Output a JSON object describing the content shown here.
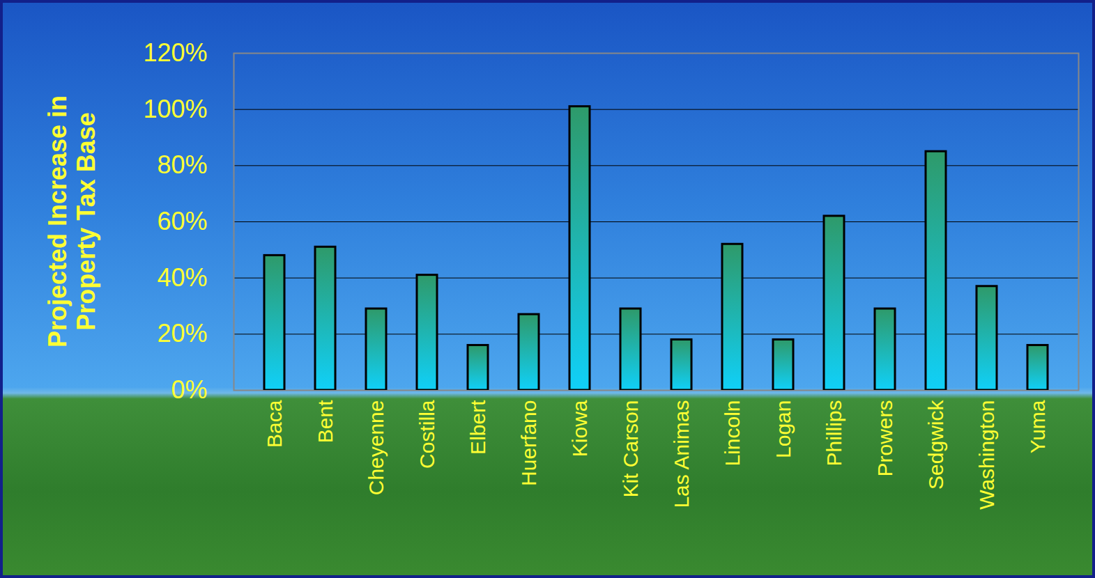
{
  "chart_data": {
    "type": "bar",
    "ylabel": "Projected Increase in Property Tax Base",
    "categories": [
      "Baca",
      "Bent",
      "Cheyenne",
      "Costilla",
      "Elbert",
      "Huerfano",
      "Kiowa",
      "Kit Carson",
      "Las Animas",
      "Lincoln",
      "Logan",
      "Phillips",
      "Prowers",
      "Sedgwick",
      "Washington",
      "Yuma"
    ],
    "values": [
      48,
      51,
      29,
      41,
      16,
      27,
      101,
      29,
      18,
      52,
      18,
      62,
      29,
      85,
      37,
      16
    ],
    "color": "#2e9a6a",
    "ylim": [
      0,
      120
    ],
    "yticks": [
      {
        "value": 0,
        "label": "0%"
      },
      {
        "value": 20,
        "label": "20%"
      },
      {
        "value": 40,
        "label": "40%"
      },
      {
        "value": 60,
        "label": "60%"
      },
      {
        "value": 80,
        "label": "80%"
      },
      {
        "value": 100,
        "label": "100%"
      },
      {
        "value": 120,
        "label": "120%"
      }
    ],
    "grid": true
  }
}
